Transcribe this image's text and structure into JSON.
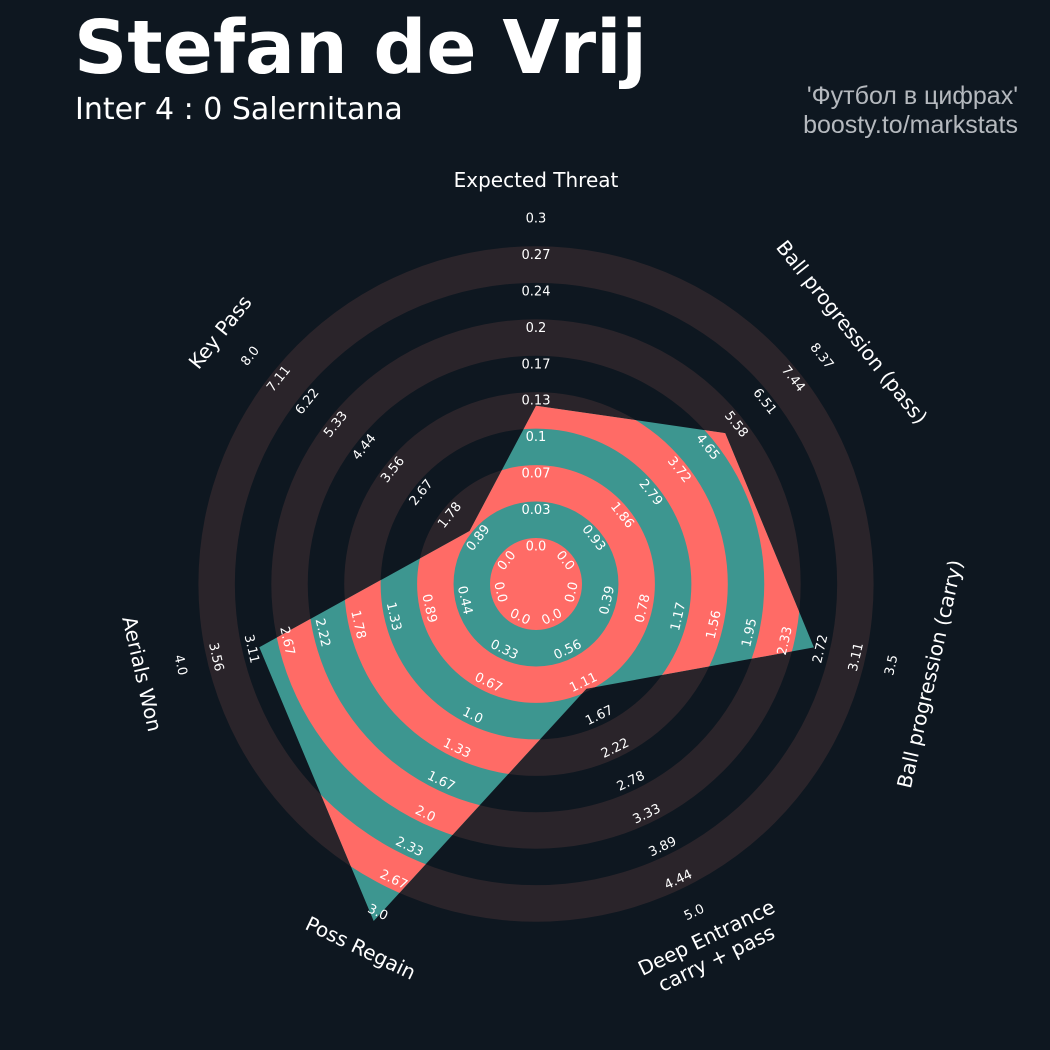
{
  "header": {
    "title": "Stefan de Vrij",
    "subtitle": "Inter 4 : 0 Salernitana",
    "credit_line1": "'Футбол в цифрах'",
    "credit_line2": "boosty.to/markstats"
  },
  "colors": {
    "background": "#0e1720",
    "ring_band": "#2a242a",
    "player_fill_a": "#ff6b66",
    "player_fill_b": "#3d9690",
    "text": "#ffffff",
    "credit_text": "#b5b9be"
  },
  "chart_data": {
    "type": "radar",
    "title": "Stefan de Vrij",
    "subtitle": "Inter 4 : 0 Salernitana",
    "params": [
      "Expected Threat",
      "Ball progression (pass)",
      "Ball progression (carry)",
      "Deep Entrance\ncarry + pass",
      "Poss Regain",
      "Aerials Won",
      "Key Pass"
    ],
    "ranges": [
      [
        0,
        0.3
      ],
      [
        0,
        8.37
      ],
      [
        0,
        3.5
      ],
      [
        0,
        5.0
      ],
      [
        0,
        3.0
      ],
      [
        0,
        4.0
      ],
      [
        0,
        8.0
      ]
    ],
    "ring_labels": [
      [
        "0.0",
        "0.03",
        "0.07",
        "0.1",
        "0.13",
        "0.17",
        "0.2",
        "0.24",
        "0.27",
        "0.3"
      ],
      [
        "0.0",
        "0.93",
        "1.86",
        "2.79",
        "3.72",
        "4.65",
        "5.58",
        "6.51",
        "7.44",
        "8.37"
      ],
      [
        "0.0",
        "0.39",
        "0.78",
        "1.17",
        "1.56",
        "1.95",
        "2.33",
        "2.72",
        "3.11",
        "3.5"
      ],
      [
        "0.0",
        "0.56",
        "1.11",
        "1.67",
        "2.22",
        "2.78",
        "3.33",
        "3.89",
        "4.44",
        "5.0"
      ],
      [
        "0.0",
        "0.33",
        "0.67",
        "1.0",
        "1.33",
        "1.67",
        "2.0",
        "2.33",
        "2.67",
        "3.0"
      ],
      [
        "0.0",
        "0.44",
        "0.89",
        "1.33",
        "1.78",
        "2.22",
        "2.67",
        "3.11",
        "3.56",
        "4.0"
      ],
      [
        "0.0",
        "0.89",
        "1.78",
        "2.67",
        "3.56",
        "4.44",
        "5.33",
        "6.22",
        "7.11",
        "8.0"
      ]
    ],
    "values": [
      0.121,
      5.0,
      2.55,
      1.07,
      3.0,
      2.9,
      0.95
    ]
  }
}
